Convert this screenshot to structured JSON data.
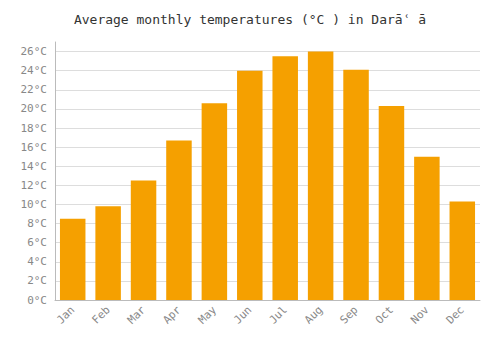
{
  "chart_data": {
    "type": "bar",
    "title": "Average monthly temperatures (°C ) in Darāʿ ā",
    "categories": [
      "Jan",
      "Feb",
      "Mar",
      "Apr",
      "May",
      "Jun",
      "Jul",
      "Aug",
      "Sep",
      "Oct",
      "Nov",
      "Dec"
    ],
    "values": [
      8.5,
      9.8,
      12.5,
      16.7,
      20.6,
      24.0,
      25.5,
      26.0,
      24.1,
      20.3,
      15.0,
      10.3
    ],
    "color": "#F5A000",
    "ylim": [
      0,
      27
    ],
    "yticks": [
      {
        "value": 0,
        "label": "0°C"
      },
      {
        "value": 2,
        "label": "2°C"
      },
      {
        "value": 4,
        "label": "4°C"
      },
      {
        "value": 6,
        "label": "6°C"
      },
      {
        "value": 8,
        "label": "8°C"
      },
      {
        "value": 10,
        "label": "10°C"
      },
      {
        "value": 12,
        "label": "12°C"
      },
      {
        "value": 14,
        "label": "14°C"
      },
      {
        "value": 16,
        "label": "16°C"
      },
      {
        "value": 18,
        "label": "18°C"
      },
      {
        "value": 20,
        "label": "20°C"
      },
      {
        "value": 22,
        "label": "22°C"
      },
      {
        "value": 24,
        "label": "24°C"
      },
      {
        "value": 26,
        "label": "26°C"
      }
    ],
    "grid": true
  }
}
